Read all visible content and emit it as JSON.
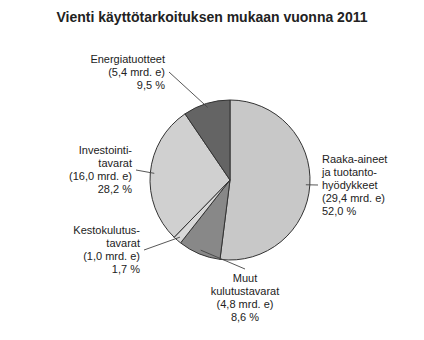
{
  "chart_data": {
    "type": "pie",
    "title": "Vienti käyttötarkoituksen mukaan vuonna 2011",
    "categories": [
      "Raaka-aineet\nja tuotanto-\nhyödykkeet\n(29,4 mrd. e)\n52,0 %",
      "Muut\nkulutustavarat\n(4,8 mrd. e)\n8,6 %",
      "Kestokulutus-\ntavarat\n(1,0 mrd. e)\n1,7 %",
      "Investointi-\ntavarat\n(16,0 mrd. e)\n28,2 %",
      "Energiatuotteet\n(5,4 mrd. e)\n9,5 %"
    ],
    "values": [
      52.0,
      8.6,
      1.7,
      28.2,
      9.5
    ],
    "colors": [
      "#c8c8c8",
      "#888888",
      "#d8d8d8",
      "#d0d0d0",
      "#646464"
    ]
  }
}
